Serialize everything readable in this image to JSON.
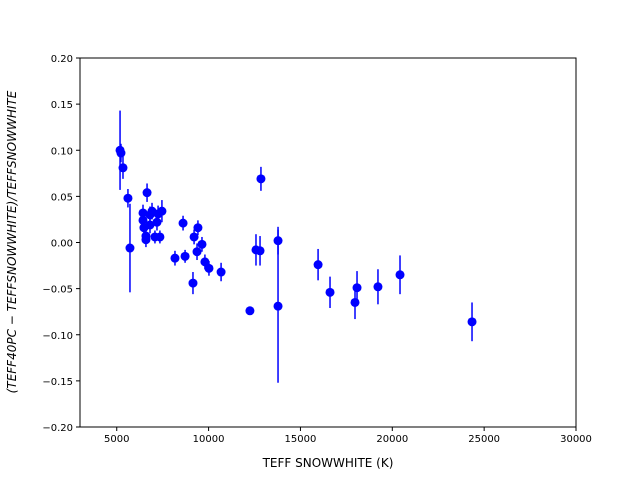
{
  "chart_data": {
    "type": "errorbar-scatter",
    "x_label": "TEFF SNOWWHITE (K)",
    "y_label": "(TEFF40PC − TEFFSNOWWHITE)/TEFFSNOWWHITE",
    "color": "#0000ff",
    "xlim": [
      3000,
      30000
    ],
    "xticks": [
      5000,
      10000,
      15000,
      20000,
      25000,
      30000
    ],
    "ylim": [
      -0.2,
      0.2
    ],
    "yticks": [
      {
        "value": -0.2,
        "label": "−0.20"
      },
      {
        "value": -0.15,
        "label": "−0.15"
      },
      {
        "value": -0.1,
        "label": "−0.10"
      },
      {
        "value": -0.05,
        "label": "−0.05"
      },
      {
        "value": 0,
        "label": "0.00"
      },
      {
        "value": 0.05,
        "label": "0.05"
      },
      {
        "value": 0.1,
        "label": "0.10"
      },
      {
        "value": 0.15,
        "label": "0.15"
      },
      {
        "value": 0.2,
        "label": "0.20"
      }
    ],
    "x": [
      5180,
      5230,
      5340,
      5610,
      5720,
      6650,
      6430,
      6430,
      6480,
      6590,
      6590,
      6810,
      6810,
      6920,
      7080,
      7190,
      7250,
      7350,
      7460,
      8170,
      8610,
      8720,
      9150,
      9210,
      9420,
      9370,
      9640,
      9800,
      10020,
      10680,
      12250,
      12580,
      12800,
      12850,
      13780,
      13780,
      15960,
      16610,
      17970,
      18080,
      19220,
      20420,
      24340
    ],
    "values": [
      0.1,
      0.097,
      0.081,
      0.048,
      -0.006,
      0.054,
      0.032,
      0.024,
      0.016,
      0.007,
      0.003,
      0.03,
      0.019,
      0.034,
      0.006,
      0.022,
      0.031,
      0.006,
      0.034,
      -0.017,
      0.021,
      -0.015,
      -0.044,
      0.006,
      0.016,
      -0.01,
      -0.002,
      -0.021,
      -0.028,
      -0.032,
      -0.074,
      -0.008,
      -0.009,
      0.069,
      0.002,
      -0.069,
      -0.024,
      -0.054,
      -0.065,
      -0.049,
      -0.048,
      -0.035,
      -0.086
    ],
    "yerr": [
      0.043,
      0.01,
      0.012,
      0.01,
      0.048,
      0.01,
      0.009,
      0.009,
      0.009,
      0.008,
      0.008,
      0.009,
      0.009,
      0.009,
      0.007,
      0.009,
      0.009,
      0.007,
      0.012,
      0.008,
      0.008,
      0.007,
      0.012,
      0.008,
      0.008,
      0.009,
      0.008,
      0.008,
      0.008,
      0.01,
      0.004,
      0.017,
      0.016,
      0.013,
      0.015,
      0.083,
      0.017,
      0.017,
      0.018,
      0.018,
      0.019,
      0.021,
      0.021
    ]
  }
}
